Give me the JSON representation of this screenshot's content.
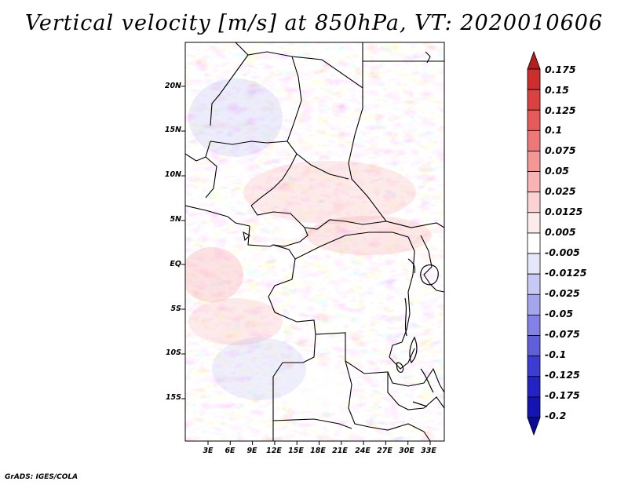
{
  "title": "Vertical velocity [m/s] at 850hPa, VT: 2020010606",
  "credit": "GrADS: IGES/COLA",
  "map": {
    "region": "Central Africa",
    "variable": "Vertical velocity",
    "units": "m/s",
    "level": "850hPa",
    "valid_time": "2020010606",
    "lat_labels": [
      "20N",
      "15N",
      "10N",
      "5N",
      "EQ",
      "5S",
      "10S",
      "15S"
    ],
    "lon_labels": [
      "3E",
      "6E",
      "9E",
      "12E",
      "15E",
      "18E",
      "21E",
      "24E",
      "27E",
      "30E",
      "33E"
    ]
  },
  "colorbar": {
    "labels": [
      "0.175",
      "0.15",
      "0.125",
      "0.1",
      "0.075",
      "0.05",
      "0.025",
      "0.0125",
      "0.005",
      "-0.005",
      "-0.0125",
      "-0.025",
      "-0.05",
      "-0.075",
      "-0.1",
      "-0.125",
      "-0.175",
      "-0.2"
    ],
    "colors": [
      "#b41e1e",
      "#cd2d2d",
      "#dc4141",
      "#e65a5a",
      "#ee7878",
      "#f49696",
      "#f8b4b4",
      "#fbd2d2",
      "#fdecec",
      "#ffffff",
      "#e6e6fa",
      "#c8c8f5",
      "#a5a5ee",
      "#8282e6",
      "#5f5fdc",
      "#3c3cd2",
      "#2323c3",
      "#1414b4",
      "#0a0a9b"
    ]
  }
}
